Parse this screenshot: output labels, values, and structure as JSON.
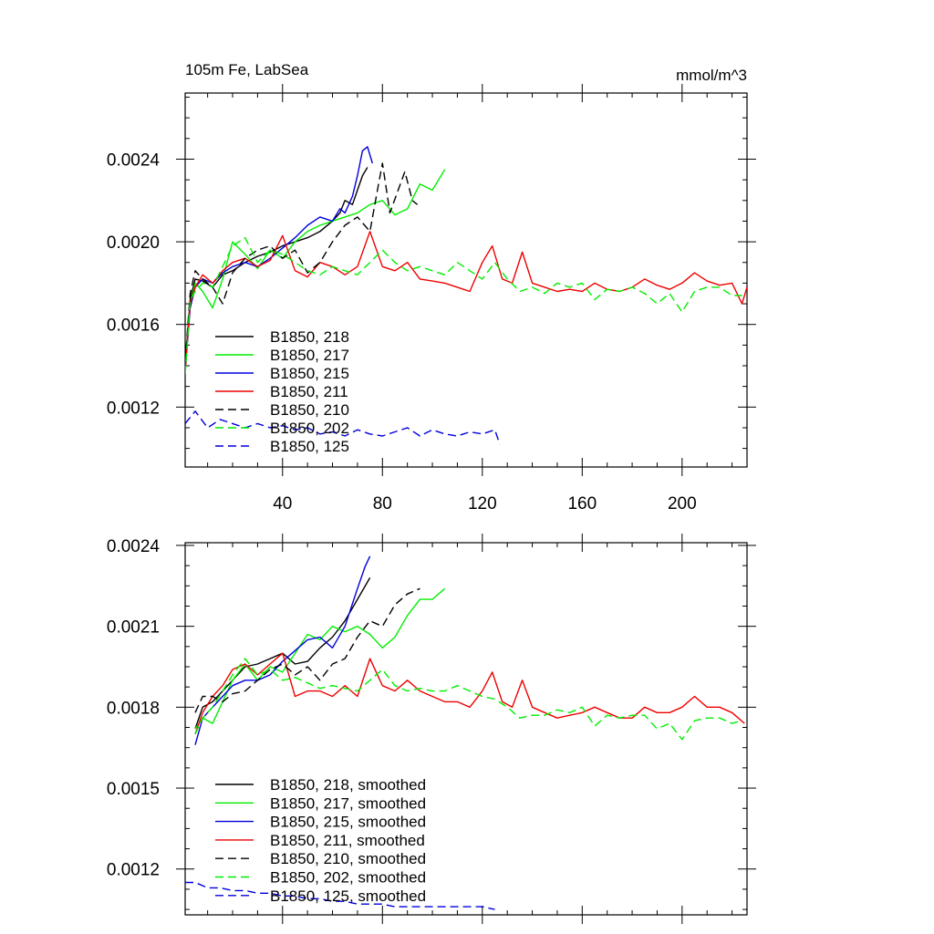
{
  "chart_data": [
    {
      "type": "line",
      "title_left": "105m Fe, LabSea",
      "title_right": "mmol/m^3",
      "xlim": [
        1,
        226
      ],
      "ylim": [
        0.00091,
        0.00272
      ],
      "x_ticks": [
        40,
        80,
        120,
        160,
        200
      ],
      "x_tick_labels": [
        "40",
        "80",
        "120",
        "160",
        "200"
      ],
      "y_ticks": [
        0.0012,
        0.0016,
        0.002,
        0.0024
      ],
      "y_tick_labels": [
        "0.0012",
        "0.0016",
        "0.0020",
        "0.0024"
      ],
      "legend": {
        "position": "lower-left",
        "entries": [
          "B1850, 218",
          "B1850, 217",
          "B1850, 215",
          "B1850, 211",
          "B1850, 210",
          "B1850, 202",
          "B1850, 125"
        ]
      },
      "series": [
        {
          "name": "B1850, 218",
          "color": "#000000",
          "dash": "solid",
          "x": [
            1,
            3,
            5,
            8,
            12,
            16,
            20,
            25,
            30,
            35,
            40,
            45,
            50,
            55,
            60,
            63,
            65,
            68,
            70,
            72,
            74
          ],
          "y": [
            0.0014,
            0.00172,
            0.00182,
            0.00181,
            0.00178,
            0.00184,
            0.00186,
            0.0019,
            0.00193,
            0.00195,
            0.00198,
            0.002,
            0.00202,
            0.00205,
            0.0021,
            0.00214,
            0.0022,
            0.00218,
            0.00225,
            0.00232,
            0.00236
          ]
        },
        {
          "name": "B1850, 217",
          "color": "#00ee00",
          "dash": "solid",
          "x": [
            1,
            3,
            5,
            8,
            12,
            16,
            20,
            25,
            30,
            35,
            40,
            45,
            50,
            55,
            60,
            65,
            70,
            75,
            80,
            85,
            90,
            95,
            100,
            105
          ],
          "y": [
            0.00136,
            0.0017,
            0.0018,
            0.00176,
            0.00168,
            0.00182,
            0.002,
            0.00194,
            0.00187,
            0.00196,
            0.00192,
            0.002,
            0.00205,
            0.00208,
            0.0021,
            0.00212,
            0.00214,
            0.00218,
            0.0022,
            0.00213,
            0.00216,
            0.00228,
            0.00225,
            0.00235
          ]
        },
        {
          "name": "B1850, 215",
          "color": "#0000dd",
          "dash": "solid",
          "x": [
            1,
            3,
            5,
            8,
            12,
            16,
            20,
            25,
            30,
            35,
            40,
            45,
            50,
            55,
            60,
            63,
            65,
            68,
            70,
            72,
            74,
            76
          ],
          "y": [
            0.00138,
            0.00168,
            0.00178,
            0.00182,
            0.0018,
            0.00185,
            0.00188,
            0.0019,
            0.00188,
            0.00192,
            0.00197,
            0.00202,
            0.00208,
            0.00212,
            0.0021,
            0.00216,
            0.00214,
            0.00222,
            0.00232,
            0.00244,
            0.00246,
            0.00238
          ]
        },
        {
          "name": "B1850, 211",
          "color": "#ee0000",
          "dash": "solid",
          "x": [
            1,
            3,
            5,
            8,
            12,
            16,
            20,
            25,
            30,
            35,
            40,
            45,
            50,
            55,
            60,
            65,
            70,
            75,
            80,
            85,
            90,
            95,
            100,
            105,
            110,
            115,
            120,
            124,
            128,
            132,
            136,
            140,
            145,
            150,
            155,
            160,
            165,
            170,
            175,
            180,
            185,
            190,
            195,
            200,
            205,
            210,
            215,
            220,
            224,
            226
          ],
          "y": [
            0.00138,
            0.0017,
            0.00178,
            0.00184,
            0.0018,
            0.00186,
            0.0019,
            0.00192,
            0.00188,
            0.00191,
            0.00203,
            0.00186,
            0.00183,
            0.0019,
            0.00188,
            0.00184,
            0.00188,
            0.00205,
            0.00188,
            0.00186,
            0.0019,
            0.00182,
            0.00181,
            0.0018,
            0.00178,
            0.00176,
            0.0019,
            0.00198,
            0.00182,
            0.0018,
            0.00195,
            0.0018,
            0.00178,
            0.00176,
            0.00177,
            0.00176,
            0.0018,
            0.00177,
            0.00176,
            0.00178,
            0.00182,
            0.00179,
            0.00177,
            0.0018,
            0.00185,
            0.00181,
            0.00179,
            0.0018,
            0.0017,
            0.00178
          ]
        },
        {
          "name": "B1850, 210",
          "color": "#000000",
          "dash": "dashed",
          "x": [
            1,
            3,
            5,
            8,
            12,
            16,
            20,
            25,
            30,
            35,
            40,
            45,
            50,
            55,
            60,
            65,
            70,
            75,
            78,
            80,
            83,
            86,
            89,
            92,
            94
          ],
          "y": [
            0.00142,
            0.00175,
            0.00186,
            0.00182,
            0.00178,
            0.0017,
            0.00185,
            0.00192,
            0.00196,
            0.00198,
            0.00192,
            0.00196,
            0.00185,
            0.0019,
            0.002,
            0.00208,
            0.00212,
            0.00205,
            0.00225,
            0.00238,
            0.00214,
            0.00224,
            0.00234,
            0.0022,
            0.00218
          ]
        },
        {
          "name": "B1850, 202",
          "color": "#00ee00",
          "dash": "dashed",
          "x": [
            1,
            3,
            5,
            8,
            12,
            16,
            20,
            25,
            30,
            35,
            40,
            45,
            50,
            55,
            60,
            65,
            70,
            75,
            80,
            85,
            90,
            95,
            100,
            105,
            110,
            115,
            120,
            125,
            130,
            135,
            140,
            145,
            150,
            155,
            160,
            165,
            170,
            175,
            180,
            185,
            190,
            195,
            200,
            205,
            210,
            215,
            220,
            224
          ],
          "y": [
            0.00136,
            0.00172,
            0.00176,
            0.0018,
            0.00178,
            0.00188,
            0.00198,
            0.00202,
            0.0019,
            0.00196,
            0.00194,
            0.0019,
            0.00186,
            0.00184,
            0.00188,
            0.00186,
            0.00184,
            0.0019,
            0.00196,
            0.0019,
            0.00186,
            0.00188,
            0.00186,
            0.00184,
            0.0019,
            0.00186,
            0.00182,
            0.0019,
            0.00182,
            0.00176,
            0.00178,
            0.00175,
            0.0018,
            0.00178,
            0.0018,
            0.00172,
            0.00177,
            0.00176,
            0.00178,
            0.00175,
            0.0017,
            0.00175,
            0.00166,
            0.00176,
            0.00178,
            0.00178,
            0.00174,
            0.00174
          ]
        },
        {
          "name": "B1850, 125",
          "color": "#0000dd",
          "dash": "dashed",
          "x": [
            1,
            5,
            10,
            15,
            20,
            25,
            30,
            35,
            40,
            45,
            50,
            55,
            60,
            65,
            70,
            75,
            80,
            85,
            90,
            95,
            100,
            105,
            110,
            115,
            120,
            125,
            127
          ],
          "y": [
            0.00112,
            0.00118,
            0.0011,
            0.00114,
            0.00112,
            0.0011,
            0.00112,
            0.0011,
            0.00111,
            0.00109,
            0.0011,
            0.00107,
            0.00108,
            0.00106,
            0.00109,
            0.00107,
            0.00106,
            0.00108,
            0.0011,
            0.00106,
            0.00109,
            0.00107,
            0.00106,
            0.00108,
            0.00107,
            0.00109,
            0.00102
          ]
        }
      ]
    },
    {
      "type": "line",
      "xlim": [
        1,
        226
      ],
      "ylim": [
        0.00103,
        0.00241
      ],
      "x_ticks": [
        40,
        80,
        120,
        160,
        200
      ],
      "y_ticks": [
        0.0012,
        0.0015,
        0.0018,
        0.0021,
        0.0024
      ],
      "y_tick_labels": [
        "0.0012",
        "0.0015",
        "0.0018",
        "0.0021",
        "0.0024"
      ],
      "legend": {
        "position": "lower-left",
        "entries": [
          "B1850, 218, smoothed",
          "B1850, 217, smoothed",
          "B1850, 215, smoothed",
          "B1850, 211, smoothed",
          "B1850, 210, smoothed",
          "B1850, 202, smoothed",
          "B1850, 125, smoothed"
        ]
      },
      "series": [
        {
          "name": "B1850, 218, smoothed",
          "color": "#000000",
          "dash": "solid",
          "x": [
            5,
            8,
            12,
            16,
            20,
            25,
            30,
            35,
            40,
            45,
            50,
            55,
            60,
            65,
            70,
            75
          ],
          "y": [
            0.00172,
            0.0018,
            0.00182,
            0.00186,
            0.0019,
            0.00195,
            0.00196,
            0.00198,
            0.002,
            0.00196,
            0.00197,
            0.00202,
            0.00206,
            0.00212,
            0.0022,
            0.00228
          ]
        },
        {
          "name": "B1850, 217, smoothed",
          "color": "#00ee00",
          "dash": "solid",
          "x": [
            5,
            8,
            12,
            16,
            20,
            25,
            30,
            35,
            40,
            45,
            50,
            55,
            60,
            65,
            70,
            75,
            80,
            85,
            90,
            95,
            100,
            105
          ],
          "y": [
            0.00172,
            0.00176,
            0.00174,
            0.00182,
            0.0019,
            0.00196,
            0.0019,
            0.00195,
            0.00193,
            0.002,
            0.00207,
            0.00205,
            0.0021,
            0.00208,
            0.0021,
            0.00207,
            0.00202,
            0.00206,
            0.00214,
            0.0022,
            0.0022,
            0.00224
          ]
        },
        {
          "name": "B1850, 215, smoothed",
          "color": "#0000dd",
          "dash": "solid",
          "x": [
            5,
            8,
            12,
            16,
            20,
            25,
            30,
            35,
            40,
            45,
            50,
            55,
            60,
            65,
            70,
            73,
            75
          ],
          "y": [
            0.00166,
            0.00176,
            0.0018,
            0.00184,
            0.00188,
            0.0019,
            0.0019,
            0.00192,
            0.00197,
            0.00201,
            0.00205,
            0.00206,
            0.00202,
            0.0021,
            0.00224,
            0.00232,
            0.00236
          ]
        },
        {
          "name": "B1850, 211, smoothed",
          "color": "#ee0000",
          "dash": "solid",
          "x": [
            5,
            8,
            12,
            16,
            20,
            25,
            30,
            35,
            40,
            45,
            50,
            55,
            60,
            65,
            70,
            75,
            80,
            85,
            90,
            95,
            100,
            105,
            110,
            115,
            120,
            124,
            128,
            132,
            136,
            140,
            145,
            150,
            155,
            160,
            165,
            170,
            175,
            180,
            185,
            190,
            195,
            200,
            205,
            210,
            215,
            220,
            225
          ],
          "y": [
            0.0017,
            0.00178,
            0.00184,
            0.00188,
            0.00194,
            0.00196,
            0.00192,
            0.00196,
            0.002,
            0.00184,
            0.00186,
            0.00186,
            0.00184,
            0.00188,
            0.00184,
            0.00198,
            0.00188,
            0.00186,
            0.0019,
            0.00186,
            0.00184,
            0.00182,
            0.00182,
            0.0018,
            0.00186,
            0.00193,
            0.00182,
            0.0018,
            0.0019,
            0.0018,
            0.00178,
            0.00176,
            0.00177,
            0.00178,
            0.0018,
            0.00178,
            0.00176,
            0.00176,
            0.0018,
            0.00178,
            0.00178,
            0.0018,
            0.00184,
            0.0018,
            0.0018,
            0.00178,
            0.00174
          ]
        },
        {
          "name": "B1850, 210, smoothed",
          "color": "#000000",
          "dash": "dashed",
          "x": [
            5,
            8,
            12,
            16,
            20,
            25,
            30,
            35,
            40,
            45,
            50,
            55,
            60,
            65,
            70,
            75,
            80,
            85,
            90,
            95
          ],
          "y": [
            0.00178,
            0.00184,
            0.00184,
            0.00182,
            0.00185,
            0.00186,
            0.0019,
            0.00194,
            0.00196,
            0.00192,
            0.00195,
            0.0019,
            0.00196,
            0.00198,
            0.00206,
            0.00212,
            0.0021,
            0.00218,
            0.00222,
            0.00224
          ]
        },
        {
          "name": "B1850, 202, smoothed",
          "color": "#00ee00",
          "dash": "dashed",
          "x": [
            5,
            8,
            12,
            16,
            20,
            25,
            30,
            35,
            40,
            45,
            50,
            55,
            60,
            65,
            70,
            75,
            80,
            85,
            90,
            95,
            100,
            105,
            110,
            115,
            120,
            125,
            130,
            135,
            140,
            145,
            150,
            155,
            160,
            165,
            170,
            175,
            180,
            185,
            190,
            195,
            200,
            205,
            210,
            215,
            220,
            224
          ],
          "y": [
            0.0017,
            0.00176,
            0.0018,
            0.00186,
            0.00192,
            0.00198,
            0.00192,
            0.00194,
            0.0019,
            0.00191,
            0.00189,
            0.00187,
            0.00188,
            0.00187,
            0.00186,
            0.0019,
            0.00194,
            0.00188,
            0.00186,
            0.00187,
            0.00186,
            0.00186,
            0.00188,
            0.00186,
            0.00184,
            0.00183,
            0.0018,
            0.00176,
            0.00177,
            0.00177,
            0.00179,
            0.00178,
            0.0018,
            0.00173,
            0.00177,
            0.00176,
            0.00177,
            0.00177,
            0.00172,
            0.00174,
            0.00168,
            0.00175,
            0.00176,
            0.00176,
            0.00174,
            0.00175
          ]
        },
        {
          "name": "B1850, 125, smoothed",
          "color": "#0000dd",
          "dash": "dashed",
          "x": [
            1,
            5,
            10,
            15,
            20,
            25,
            30,
            35,
            40,
            45,
            50,
            55,
            60,
            65,
            70,
            75,
            80,
            85,
            90,
            95,
            100,
            105,
            110,
            115,
            120,
            125
          ],
          "y": [
            0.00115,
            0.00115,
            0.00113,
            0.00113,
            0.00112,
            0.00112,
            0.00111,
            0.00111,
            0.0011,
            0.0011,
            0.00109,
            0.00109,
            0.00108,
            0.00108,
            0.00107,
            0.00107,
            0.00107,
            0.00106,
            0.00106,
            0.00106,
            0.00106,
            0.00106,
            0.00106,
            0.00106,
            0.00106,
            0.00105
          ]
        }
      ]
    }
  ]
}
